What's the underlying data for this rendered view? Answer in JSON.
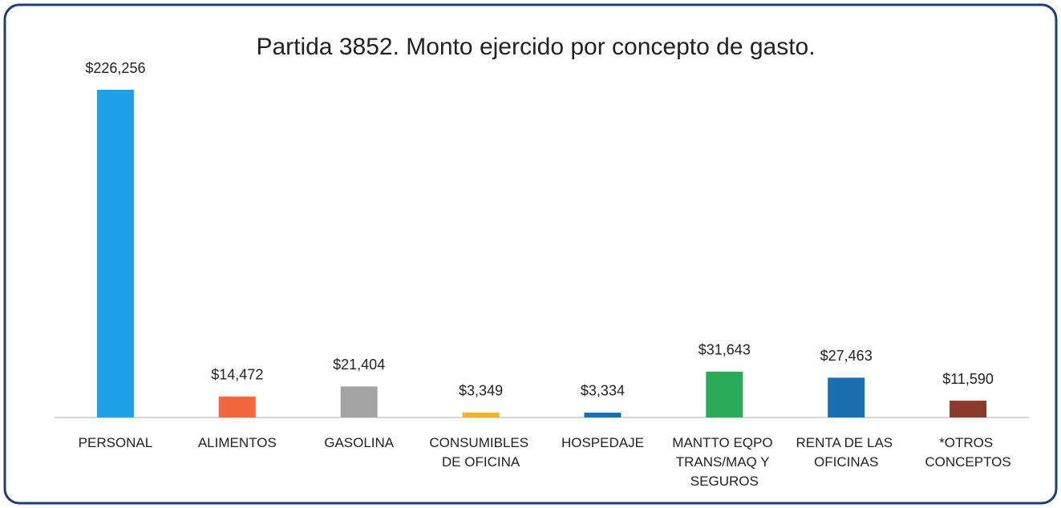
{
  "chart_data": {
    "type": "bar",
    "title": "Partida 3852. Monto ejercido por concepto de gasto.",
    "categories": [
      "PERSONAL",
      "ALIMENTOS",
      "GASOLINA",
      "CONSUMIBLES DE OFICINA",
      "HOSPEDAJE",
      "MANTTO EQPO TRANS/MAQ Y SEGUROS",
      "RENTA DE LAS OFICINAS",
      "*OTROS CONCEPTOS"
    ],
    "values": [
      226256,
      14472,
      21404,
      3349,
      3334,
      31643,
      27463,
      11590
    ],
    "value_labels": [
      "$226,256",
      "$14,472",
      "$21,404",
      "$3,349",
      "$3,334",
      "$31,643",
      "$27,463",
      "$11,590"
    ],
    "colors": [
      "#1ea1e8",
      "#f4663b",
      "#a3a3a3",
      "#f5b324",
      "#1670b8",
      "#2aab5a",
      "#1a6fb0",
      "#8b3a2b"
    ]
  }
}
